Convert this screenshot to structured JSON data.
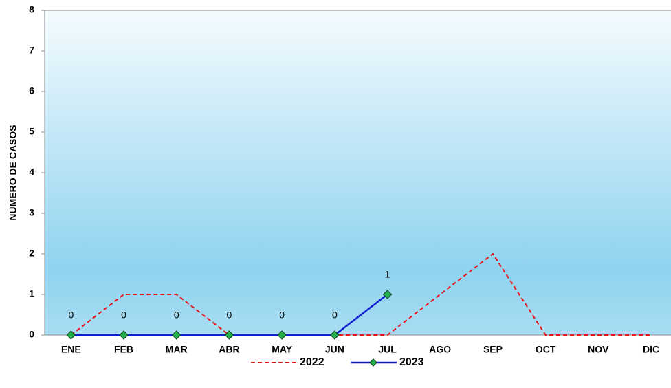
{
  "chart_data": {
    "type": "line",
    "y_label": "NUMERO DE CASOS",
    "categories": [
      "ENE",
      "FEB",
      "MAR",
      "ABR",
      "MAY",
      "JUN",
      "JUL",
      "AGO",
      "SEP",
      "OCT",
      "NOV",
      "DIC"
    ],
    "series": [
      {
        "name": "2022",
        "color": "#e8141a",
        "dashed": true,
        "values": [
          0,
          1,
          1,
          0,
          0,
          0,
          0,
          1,
          2,
          0,
          0,
          0
        ]
      },
      {
        "name": "2023",
        "color": "#0f1ed2",
        "marker_color": "#22b04a",
        "data_labels": true,
        "values": [
          0,
          0,
          0,
          0,
          0,
          0,
          1,
          null,
          null,
          null,
          null,
          null
        ]
      }
    ],
    "ylim": [
      0,
      8
    ],
    "yticks": [
      0,
      1,
      2,
      3,
      4,
      5,
      6,
      7,
      8
    ],
    "grid": false,
    "legend": "bottom"
  }
}
